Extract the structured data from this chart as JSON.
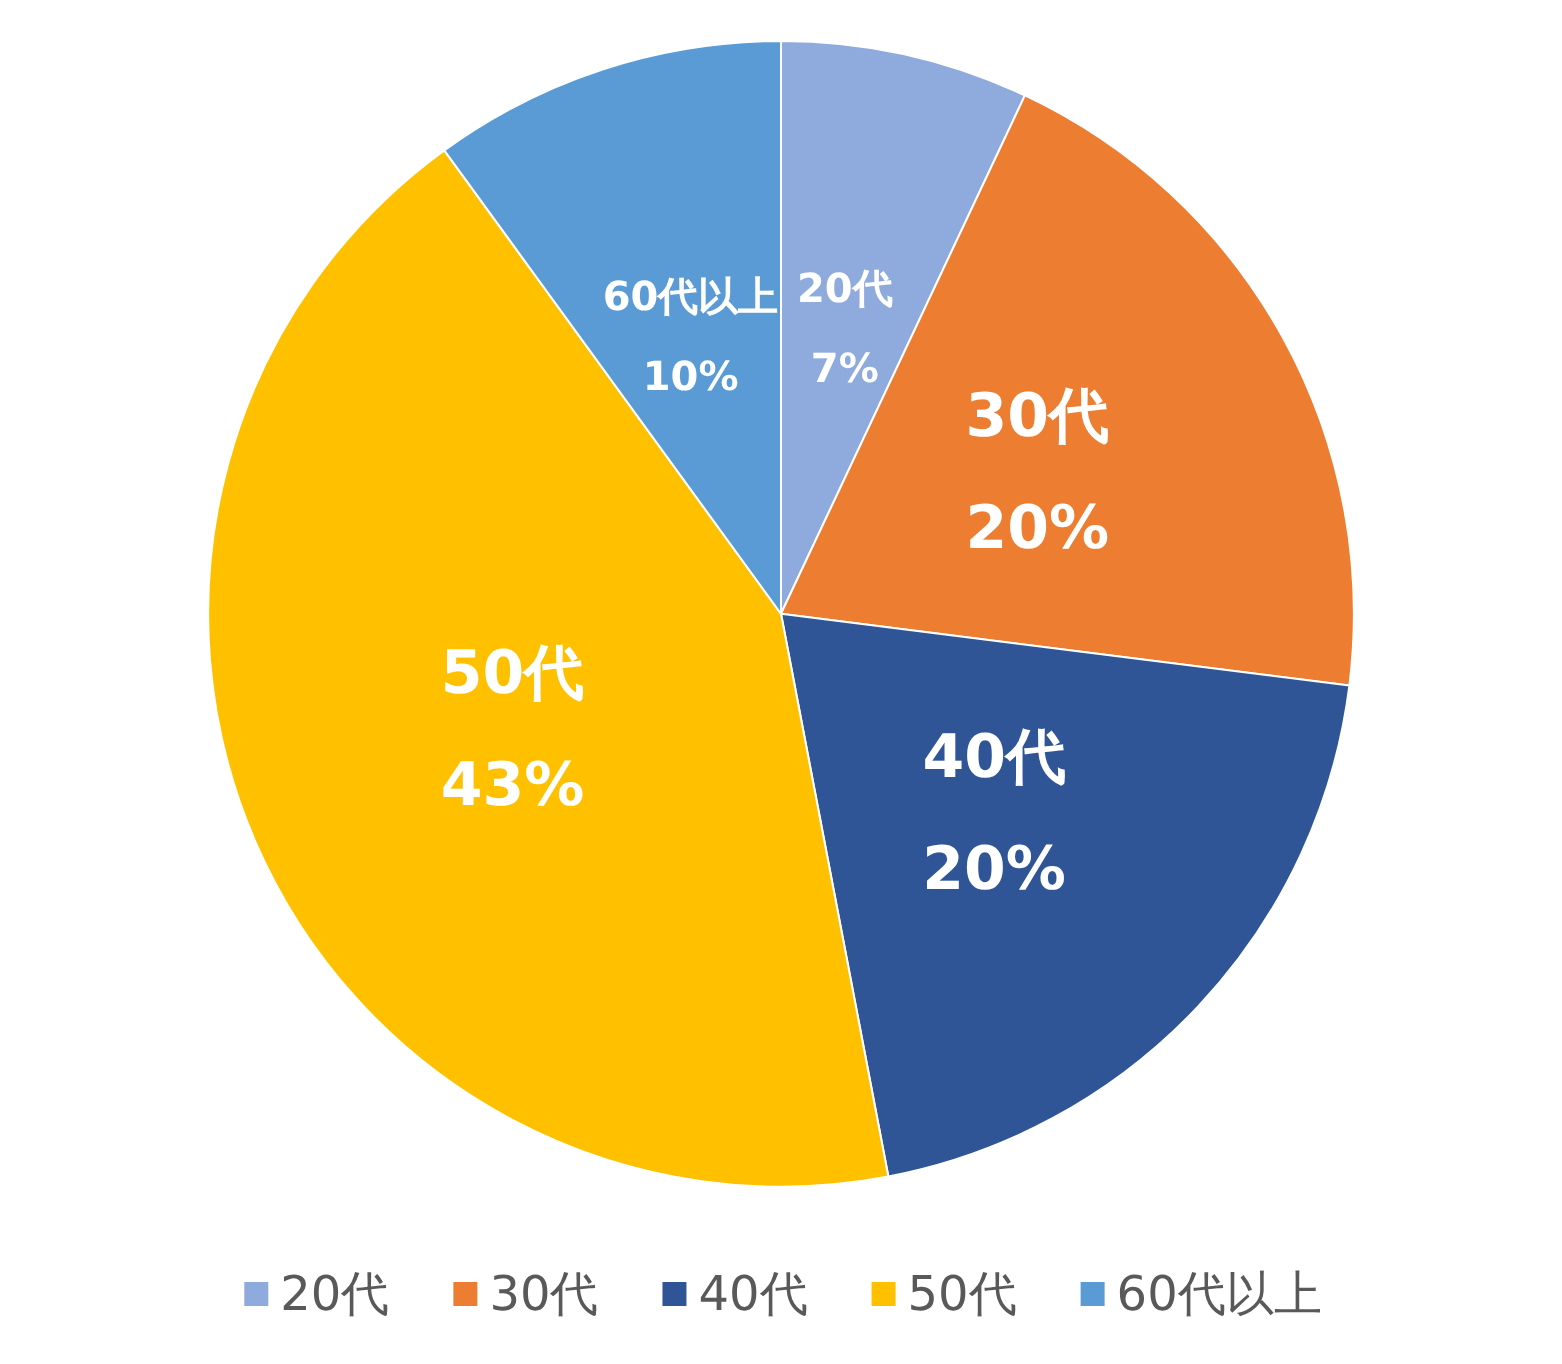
{
  "chart_data": {
    "type": "pie",
    "categories": [
      "20代",
      "30代",
      "40代",
      "50代",
      "60代以上"
    ],
    "values": [
      7,
      20,
      20,
      43,
      10
    ],
    "colors": [
      "#8faadc",
      "#ed7d31",
      "#2f5597",
      "#ffc000",
      "#5b9bd5"
    ],
    "value_labels": [
      "20代\n7%",
      "30代\n20%",
      "40代\n20%",
      "50代\n43%",
      "60代以上\n10%"
    ],
    "legend": "bottom"
  }
}
